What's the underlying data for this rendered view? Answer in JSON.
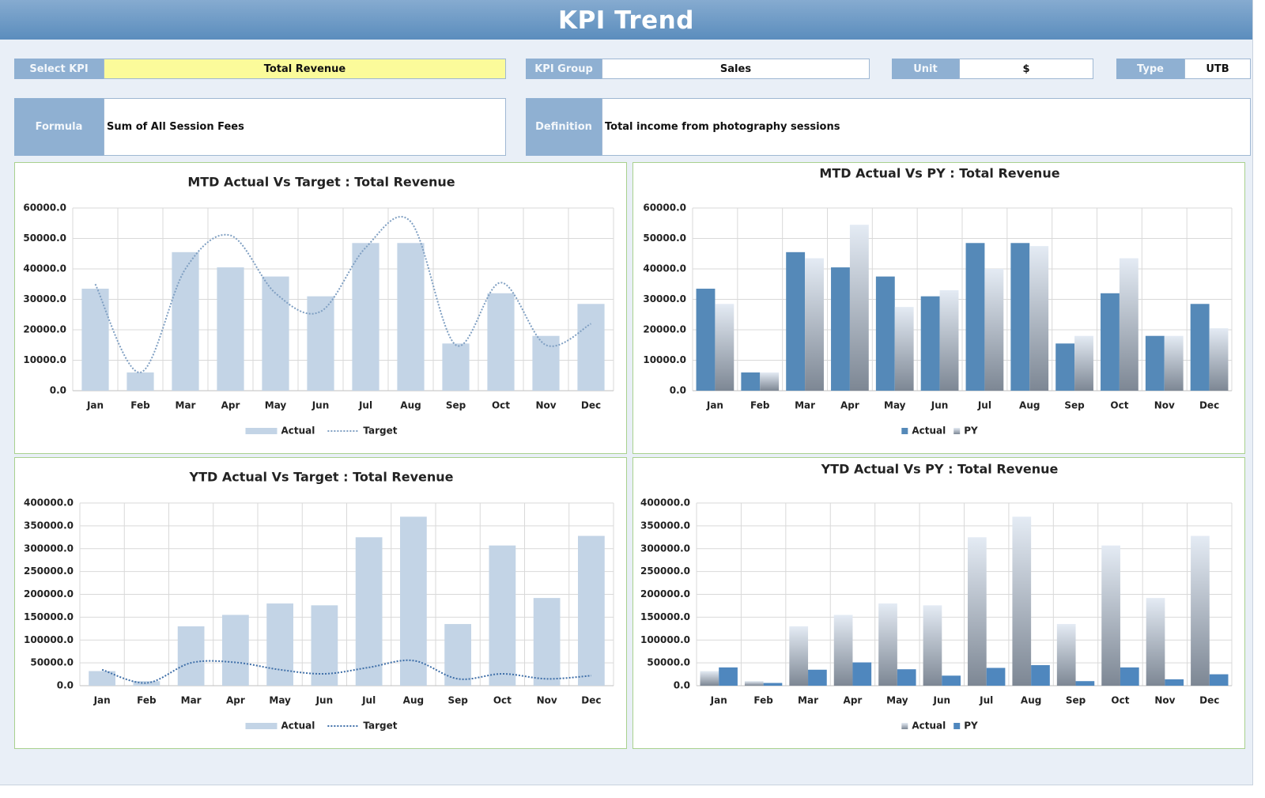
{
  "header": {
    "title": "KPI Trend"
  },
  "fields": [
    {
      "label": "Select KPI",
      "value": "Total Revenue"
    },
    {
      "label": "KPI Group",
      "value": "Sales"
    },
    {
      "label": "Unit",
      "value": "$"
    },
    {
      "label": "Type",
      "value": "UTB"
    },
    {
      "label": "Formula",
      "value": "Sum of All Session Fees"
    },
    {
      "label": "Definition",
      "value": "Total income from photography sessions"
    }
  ],
  "chart_data": [
    {
      "type": "bar",
      "title": "MTD Actual Vs Target : Total Revenue",
      "categories": [
        "Jan",
        "Feb",
        "Mar",
        "Apr",
        "May",
        "Jun",
        "Jul",
        "Aug",
        "Sep",
        "Oct",
        "Nov",
        "Dec"
      ],
      "series": [
        {
          "name": "Actual",
          "color": "#c3d4e6",
          "values": [
            33500,
            6000,
            45500,
            40500,
            37500,
            31000,
            48500,
            48500,
            15500,
            32000,
            18000,
            28500
          ]
        },
        {
          "name": "Target",
          "type": "line",
          "color": "#7f9fc2",
          "values": [
            35000,
            6000,
            40000,
            51000,
            32000,
            26000,
            47000,
            55500,
            15000,
            35500,
            15000,
            22000
          ]
        }
      ],
      "ylim": [
        0,
        60000
      ],
      "yticks": [
        {
          "value": 0,
          "label": "0.0"
        },
        {
          "value": 10000,
          "label": "10000.0"
        },
        {
          "value": 20000,
          "label": "20000.0"
        },
        {
          "value": 30000,
          "label": "30000.0"
        },
        {
          "value": 40000,
          "label": "40000.0"
        },
        {
          "value": 50000,
          "label": "50000.0"
        },
        {
          "value": 60000,
          "label": "60000.0"
        }
      ],
      "grid": true,
      "legend": "bottom"
    },
    {
      "type": "bar",
      "title": "MTD Actual Vs PY : Total Revenue",
      "categories": [
        "Jan",
        "Feb",
        "Mar",
        "Apr",
        "May",
        "Jun",
        "Jul",
        "Aug",
        "Sep",
        "Oct",
        "Nov",
        "Dec"
      ],
      "series": [
        {
          "name": "Actual",
          "color": "#5589b8",
          "values": [
            33500,
            6000,
            45500,
            40500,
            37500,
            31000,
            48500,
            48500,
            15500,
            32000,
            18000,
            28500
          ]
        },
        {
          "name": "PY",
          "color": "#7d8794",
          "fill": "gradient",
          "values": [
            28500,
            6000,
            43500,
            54500,
            27500,
            33000,
            40000,
            47500,
            18000,
            43500,
            18000,
            20500
          ]
        }
      ],
      "ylim": [
        0,
        60000
      ],
      "yticks": [
        {
          "value": 0,
          "label": "0.0"
        },
        {
          "value": 10000,
          "label": "10000.0"
        },
        {
          "value": 20000,
          "label": "20000.0"
        },
        {
          "value": 30000,
          "label": "30000.0"
        },
        {
          "value": 40000,
          "label": "40000.0"
        },
        {
          "value": 50000,
          "label": "50000.0"
        },
        {
          "value": 60000,
          "label": "60000.0"
        }
      ],
      "grid": true,
      "legend": "bottom"
    },
    {
      "type": "bar",
      "title": "YTD Actual Vs Target : Total Revenue",
      "categories": [
        "Jan",
        "Feb",
        "Mar",
        "Apr",
        "May",
        "Jun",
        "Jul",
        "Aug",
        "Sep",
        "Oct",
        "Nov",
        "Dec"
      ],
      "series": [
        {
          "name": "Actual",
          "color": "#c3d4e6",
          "values": [
            32000,
            10000,
            130000,
            155000,
            180000,
            176000,
            325000,
            370000,
            135000,
            307000,
            192000,
            328000
          ]
        },
        {
          "name": "Target",
          "type": "line",
          "color": "#3f6fa8",
          "values": [
            35000,
            6000,
            50000,
            51000,
            35000,
            26000,
            40000,
            55000,
            15000,
            26000,
            15000,
            22000
          ]
        }
      ],
      "ylim": [
        0,
        400000
      ],
      "yticks": [
        {
          "value": 0,
          "label": "0.0"
        },
        {
          "value": 50000,
          "label": "50000.0"
        },
        {
          "value": 100000,
          "label": "100000.0"
        },
        {
          "value": 150000,
          "label": "150000.0"
        },
        {
          "value": 200000,
          "label": "200000.0"
        },
        {
          "value": 250000,
          "label": "250000.0"
        },
        {
          "value": 300000,
          "label": "300000.0"
        },
        {
          "value": 350000,
          "label": "350000.0"
        },
        {
          "value": 400000,
          "label": "400000.0"
        }
      ],
      "grid": true,
      "legend": "bottom"
    },
    {
      "type": "bar",
      "title": "YTD Actual Vs PY : Total Revenue",
      "categories": [
        "Jan",
        "Feb",
        "Mar",
        "Apr",
        "May",
        "Jun",
        "Jul",
        "Aug",
        "Sep",
        "Oct",
        "Nov",
        "Dec"
      ],
      "series": [
        {
          "name": "Actual",
          "color": "#7d8794",
          "fill": "gradient",
          "values": [
            32000,
            10000,
            130000,
            155000,
            180000,
            176000,
            325000,
            370000,
            135000,
            307000,
            192000,
            328000
          ]
        },
        {
          "name": "PY",
          "color": "#4f87be",
          "values": [
            40000,
            6000,
            35000,
            51000,
            36000,
            22000,
            39000,
            45000,
            10000,
            40000,
            14000,
            25000
          ]
        }
      ],
      "ylim": [
        0,
        400000
      ],
      "yticks": [
        {
          "value": 0,
          "label": "0.0"
        },
        {
          "value": 50000,
          "label": "50000.0"
        },
        {
          "value": 100000,
          "label": "100000.0"
        },
        {
          "value": 150000,
          "label": "150000.0"
        },
        {
          "value": 200000,
          "label": "200000.0"
        },
        {
          "value": 250000,
          "label": "250000.0"
        },
        {
          "value": 300000,
          "label": "300000.0"
        },
        {
          "value": 350000,
          "label": "350000.0"
        },
        {
          "value": 400000,
          "label": "400000.0"
        }
      ],
      "grid": true,
      "legend": "bottom"
    }
  ]
}
